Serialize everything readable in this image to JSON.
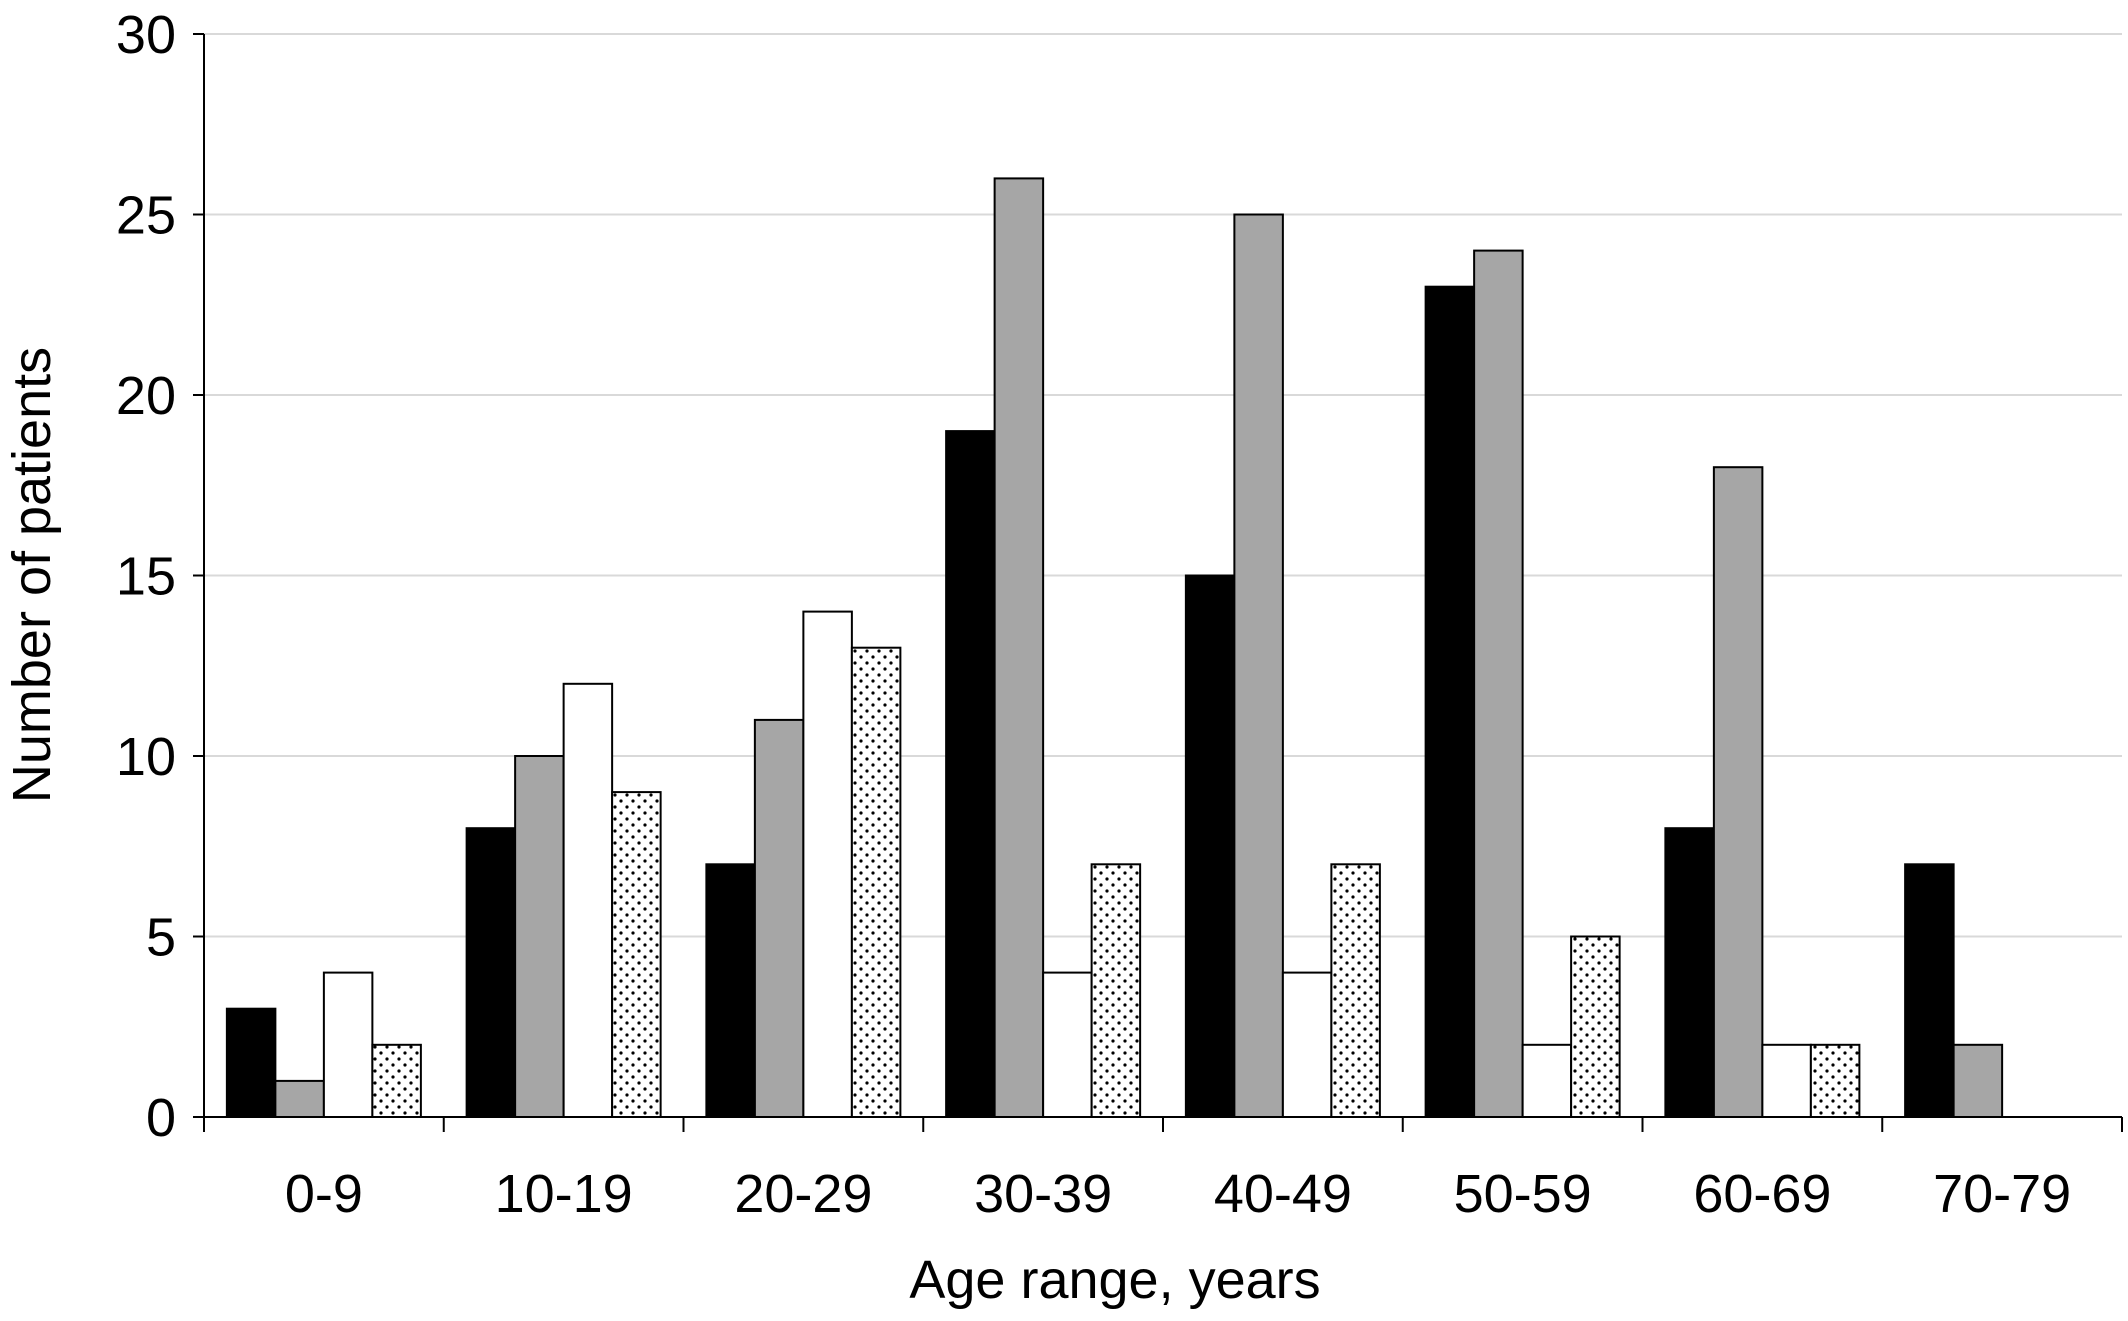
{
  "chart_data": {
    "type": "bar",
    "title": "",
    "xlabel": "Age range, years",
    "ylabel": "Number of patients",
    "categories": [
      "0-9",
      "10-19",
      "20-29",
      "30-39",
      "40-49",
      "50-59",
      "60-69",
      "70-79"
    ],
    "series": [
      {
        "fill": "#000000",
        "pattern": "solid",
        "values": [
          3,
          8,
          7,
          19,
          15,
          23,
          8,
          7
        ]
      },
      {
        "fill": "#a6a6a6",
        "pattern": "solid",
        "values": [
          1,
          10,
          11,
          26,
          25,
          24,
          18,
          2
        ]
      },
      {
        "fill": "#ffffff",
        "pattern": "solid",
        "values": [
          4,
          12,
          14,
          4,
          4,
          2,
          2,
          0
        ]
      },
      {
        "fill": "#ffffff",
        "pattern": "dotted",
        "values": [
          2,
          9,
          13,
          7,
          7,
          5,
          2,
          0
        ]
      }
    ],
    "ylim": [
      0,
      30
    ],
    "yticks": [
      "0",
      "5",
      "10",
      "15",
      "20",
      "25",
      "30"
    ],
    "grid": true,
    "legend": "none",
    "colors": {
      "gridline": "#d9d9d9",
      "axis": "#000000",
      "dot": "#000000"
    }
  }
}
